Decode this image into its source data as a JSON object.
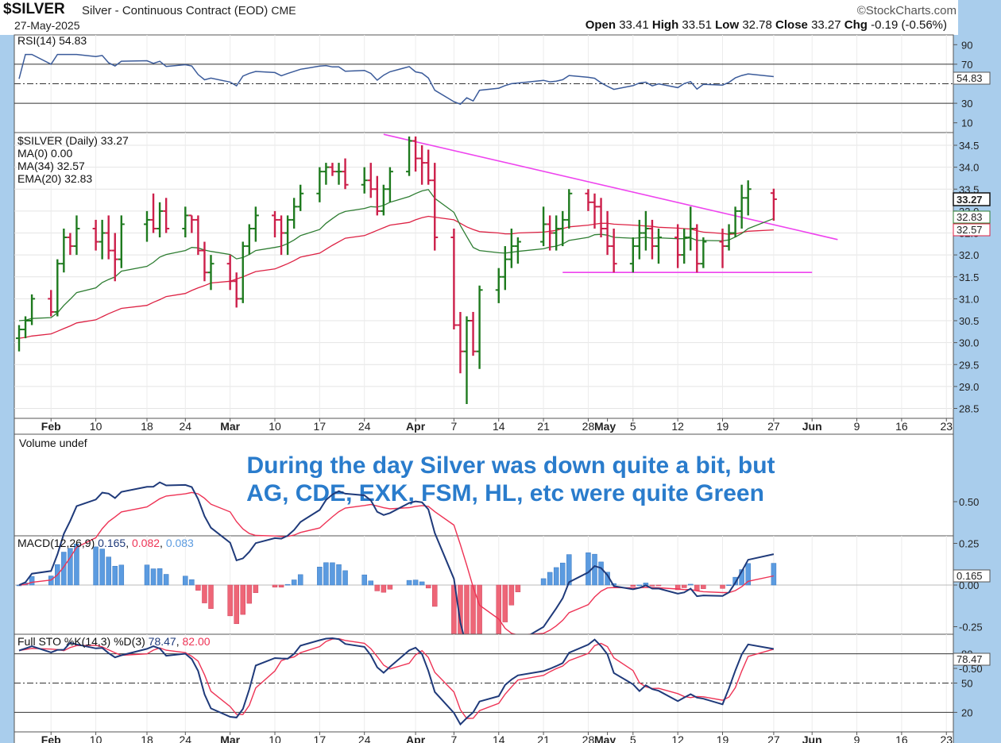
{
  "header": {
    "symbol": "$SILVER",
    "description": "Silver - Continuous Contract (EOD)",
    "exchange": "CME",
    "date": "27-May-2025",
    "brand": "©StockCharts.com",
    "open_label": "Open",
    "open": "33.41",
    "high_label": "High",
    "high": "33.51",
    "low_label": "Low",
    "low": "32.78",
    "close_label": "Close",
    "close": "33.27",
    "chg_label": "Chg",
    "chg": "-0.19 (-0.56%)"
  },
  "rsi_panel": {
    "label": "RSI(14) 54.83",
    "value_tag": "54.83",
    "ticks": [
      "90",
      "70",
      "30",
      "10"
    ]
  },
  "price_panel": {
    "title": "$SILVER (Daily) 33.27",
    "legend": [
      {
        "text": "MA(0) 0.00",
        "color": "#1a237e"
      },
      {
        "text": "MA(34) 32.57",
        "color": "#cc2244"
      },
      {
        "text": "EMA(20) 32.83",
        "color": "#2e7d32"
      }
    ],
    "tags": [
      "33.27",
      "32.83",
      "32.57"
    ],
    "ticks": [
      "34.5",
      "34.0",
      "33.5",
      "33.0",
      "32.5",
      "32.0",
      "31.5",
      "31.0",
      "30.5",
      "30.0",
      "29.5",
      "29.0",
      "28.5"
    ]
  },
  "volume_panel": {
    "label": "Volume undef",
    "annotation_line1": "During the day Silver was down quite a bit, but",
    "annotation_line2": "AG, CDE, EXK, FSM, HL, etc were quite Green"
  },
  "macd_panel": {
    "label_prefix": "MACD(12,26,9)",
    "macd": "0.165",
    "signal": "0.082",
    "hist": "0.083",
    "value_tag": "0.165",
    "ticks": [
      "0.50",
      "0.25",
      "0.00",
      "-0.25",
      "-0.50"
    ]
  },
  "sto_panel": {
    "label_prefix": "Full STO %K(14,3) %D(3)",
    "k": "78.47",
    "d": "82.00",
    "value_tag": "78.47",
    "ticks": [
      "80",
      "50",
      "20"
    ]
  },
  "x_axis": {
    "labels": [
      "Feb",
      "10",
      "18",
      "24",
      "Mar",
      "10",
      "17",
      "24",
      "Apr",
      "7",
      "14",
      "21",
      "28",
      "May",
      "5",
      "12",
      "19",
      "27",
      "Jun",
      "9",
      "16",
      "23"
    ],
    "bold": [
      "Feb",
      "Mar",
      "Apr",
      "May",
      "Jun"
    ]
  },
  "colors": {
    "up": "#1e7a1e",
    "down": "#cc1f4a",
    "trendline": "#ee44ee",
    "ma34": "#dd2244",
    "ema20": "#2e7d32",
    "rsi": "#3b5b9a",
    "macd": "#1f3a7a",
    "signal": "#ee3355",
    "hist_pos": "#5b9be0",
    "hist_neg": "#ee6677"
  },
  "chart_data": {
    "type": "ohlc",
    "title": "$SILVER Silver - Continuous Contract (EOD)",
    "x": [
      "2025-01-29",
      "2025-01-30",
      "2025-01-31",
      "2025-02-03",
      "2025-02-04",
      "2025-02-05",
      "2025-02-06",
      "2025-02-07",
      "2025-02-10",
      "2025-02-11",
      "2025-02-12",
      "2025-02-13",
      "2025-02-14",
      "2025-02-18",
      "2025-02-19",
      "2025-02-20",
      "2025-02-21",
      "2025-02-24",
      "2025-02-25",
      "2025-02-26",
      "2025-02-27",
      "2025-02-28",
      "2025-03-03",
      "2025-03-04",
      "2025-03-05",
      "2025-03-06",
      "2025-03-07",
      "2025-03-10",
      "2025-03-11",
      "2025-03-12",
      "2025-03-13",
      "2025-03-14",
      "2025-03-17",
      "2025-03-18",
      "2025-03-19",
      "2025-03-20",
      "2025-03-21",
      "2025-03-24",
      "2025-03-25",
      "2025-03-26",
      "2025-03-27",
      "2025-03-28",
      "2025-03-31",
      "2025-04-01",
      "2025-04-02",
      "2025-04-03",
      "2025-04-04",
      "2025-04-07",
      "2025-04-08",
      "2025-04-09",
      "2025-04-10",
      "2025-04-11",
      "2025-04-14",
      "2025-04-15",
      "2025-04-16",
      "2025-04-17",
      "2025-04-21",
      "2025-04-22",
      "2025-04-23",
      "2025-04-24",
      "2025-04-25",
      "2025-04-28",
      "2025-04-29",
      "2025-04-30",
      "2025-05-01",
      "2025-05-02",
      "2025-05-05",
      "2025-05-06",
      "2025-05-07",
      "2025-05-08",
      "2025-05-09",
      "2025-05-12",
      "2025-05-13",
      "2025-05-14",
      "2025-05-15",
      "2025-05-16",
      "2025-05-19",
      "2025-05-20",
      "2025-05-21",
      "2025-05-22",
      "2025-05-23",
      "2025-05-27"
    ],
    "ohlc": [
      [
        30.1,
        30.4,
        29.8,
        30.3
      ],
      [
        30.3,
        30.6,
        30.1,
        30.5
      ],
      [
        30.5,
        31.1,
        30.4,
        31.0
      ],
      [
        31.0,
        31.2,
        30.6,
        30.7
      ],
      [
        30.7,
        31.9,
        30.6,
        31.8
      ],
      [
        31.8,
        32.6,
        31.6,
        32.4
      ],
      [
        32.4,
        32.5,
        32.0,
        32.2
      ],
      [
        32.2,
        32.9,
        32.0,
        32.6
      ],
      [
        32.6,
        32.8,
        32.1,
        32.3
      ],
      [
        32.3,
        32.8,
        31.9,
        32.5
      ],
      [
        32.5,
        32.9,
        31.9,
        32.1
      ],
      [
        32.1,
        32.5,
        31.4,
        31.9
      ],
      [
        31.9,
        32.9,
        31.7,
        32.7
      ],
      [
        32.7,
        33.0,
        32.3,
        32.8
      ],
      [
        32.8,
        33.4,
        32.5,
        32.6
      ],
      [
        32.6,
        33.2,
        32.4,
        33.0
      ],
      [
        33.0,
        33.3,
        32.5,
        32.6
      ],
      [
        32.6,
        33.1,
        32.4,
        32.9
      ],
      [
        32.9,
        32.9,
        32.5,
        32.8
      ],
      [
        32.8,
        32.9,
        32.0,
        32.1
      ],
      [
        32.1,
        32.3,
        31.4,
        31.6
      ],
      [
        31.6,
        32.0,
        31.2,
        31.8
      ],
      [
        31.8,
        32.0,
        31.2,
        31.4
      ],
      [
        31.4,
        31.6,
        30.8,
        31.0
      ],
      [
        31.0,
        32.3,
        30.9,
        32.2
      ],
      [
        32.2,
        32.7,
        32.0,
        32.6
      ],
      [
        32.6,
        33.1,
        32.3,
        32.9
      ],
      [
        32.9,
        33.0,
        32.4,
        32.8
      ],
      [
        32.8,
        32.9,
        32.0,
        32.5
      ],
      [
        32.5,
        32.9,
        32.0,
        32.8
      ],
      [
        32.8,
        33.3,
        32.6,
        33.1
      ],
      [
        33.1,
        33.6,
        33.0,
        33.4
      ],
      [
        33.4,
        34.0,
        33.2,
        33.9
      ],
      [
        33.9,
        34.1,
        33.6,
        34.0
      ],
      [
        34.0,
        34.1,
        33.8,
        33.9
      ],
      [
        33.9,
        34.1,
        33.6,
        33.9
      ],
      [
        33.9,
        34.2,
        33.5,
        33.6
      ],
      [
        33.6,
        34.0,
        33.4,
        33.7
      ],
      [
        33.7,
        34.1,
        33.3,
        33.5
      ],
      [
        33.5,
        33.8,
        32.9,
        33.0
      ],
      [
        33.0,
        33.6,
        32.9,
        33.5
      ],
      [
        33.5,
        34.0,
        33.2,
        33.9
      ],
      [
        33.9,
        34.7,
        33.8,
        34.6
      ],
      [
        34.6,
        34.7,
        33.9,
        34.2
      ],
      [
        34.2,
        34.5,
        33.6,
        34.1
      ],
      [
        34.1,
        34.4,
        33.6,
        33.7
      ],
      [
        33.7,
        34.1,
        32.1,
        32.4
      ],
      [
        32.4,
        32.6,
        30.3,
        30.4
      ],
      [
        30.4,
        30.7,
        29.3,
        29.8
      ],
      [
        29.8,
        30.6,
        28.6,
        30.5
      ],
      [
        30.5,
        30.7,
        29.7,
        29.8
      ],
      [
        29.8,
        31.3,
        29.4,
        31.2
      ],
      [
        31.2,
        31.7,
        30.9,
        31.5
      ],
      [
        31.5,
        32.2,
        31.2,
        31.9
      ],
      [
        31.9,
        32.6,
        31.7,
        32.2
      ],
      [
        32.2,
        32.4,
        31.8,
        32.3
      ],
      [
        32.3,
        33.1,
        32.2,
        32.7
      ],
      [
        32.7,
        32.9,
        32.1,
        32.5
      ],
      [
        32.5,
        32.9,
        32.1,
        32.6
      ],
      [
        32.6,
        33.0,
        32.2,
        32.8
      ],
      [
        32.8,
        33.5,
        32.6,
        33.4
      ],
      [
        33.4,
        33.5,
        33.0,
        33.2
      ],
      [
        33.2,
        33.4,
        32.6,
        33.1
      ],
      [
        33.1,
        33.3,
        32.4,
        32.6
      ],
      [
        32.6,
        33.0,
        32.0,
        32.2
      ],
      [
        32.2,
        32.6,
        31.6,
        31.8
      ],
      [
        31.8,
        32.4,
        31.6,
        32.2
      ],
      [
        32.2,
        32.8,
        31.9,
        32.5
      ],
      [
        32.5,
        33.0,
        32.1,
        32.6
      ],
      [
        32.6,
        32.8,
        31.9,
        32.2
      ],
      [
        32.2,
        32.6,
        31.8,
        32.4
      ],
      [
        32.4,
        32.7,
        31.7,
        32.0
      ],
      [
        32.0,
        32.6,
        31.8,
        32.4
      ],
      [
        32.4,
        33.1,
        32.1,
        32.6
      ],
      [
        32.6,
        32.7,
        31.6,
        31.8
      ],
      [
        31.8,
        32.4,
        31.7,
        32.3
      ],
      [
        32.3,
        32.6,
        31.7,
        32.2
      ],
      [
        32.2,
        32.7,
        32.1,
        32.5
      ],
      [
        32.5,
        33.1,
        32.4,
        33.0
      ],
      [
        33.0,
        33.6,
        32.6,
        33.3
      ],
      [
        33.3,
        33.7,
        32.9,
        33.5
      ],
      [
        33.41,
        33.51,
        32.78,
        33.27
      ]
    ],
    "ylim": [
      28.3,
      34.8
    ],
    "annotations": [
      {
        "type": "trendline",
        "from": [
          "2025-03-27",
          34.75
        ],
        "to": [
          "2025-06-06",
          32.35
        ]
      },
      {
        "type": "support",
        "from": [
          "2025-04-24",
          31.6
        ],
        "to": [
          "2025-06-02",
          31.6
        ]
      }
    ],
    "ma34_values": [
      30.1,
      30.12,
      30.15,
      30.2,
      30.26,
      30.32,
      30.38,
      30.45,
      30.52,
      30.59,
      30.66,
      30.72,
      30.78,
      30.85,
      30.92,
      30.98,
      31.05,
      31.12,
      31.19,
      31.25,
      31.3,
      31.36,
      31.4,
      31.45,
      31.5,
      31.56,
      31.62,
      31.68,
      31.74,
      31.8,
      31.87,
      31.95,
      32.04,
      32.13,
      32.22,
      32.3,
      32.38,
      32.44,
      32.5,
      32.56,
      32.62,
      32.68,
      32.74,
      32.8,
      32.85,
      32.88,
      32.86,
      32.8,
      32.72,
      32.64,
      32.58,
      32.53,
      32.5,
      32.48,
      32.48,
      32.5,
      32.52,
      32.54,
      32.56,
      32.6,
      32.64,
      32.68,
      32.7,
      32.72,
      32.72,
      32.7,
      32.68,
      32.67,
      32.66,
      32.65,
      32.63,
      32.61,
      32.6,
      32.59,
      32.55,
      32.52,
      32.49,
      32.47,
      32.48,
      32.51,
      32.54,
      32.57
    ],
    "ema20_values": [
      30.5,
      30.51,
      30.55,
      30.57,
      30.68,
      30.85,
      30.99,
      31.14,
      31.25,
      31.37,
      31.44,
      31.5,
      31.63,
      31.74,
      31.83,
      31.95,
      32.01,
      32.1,
      32.17,
      32.16,
      32.11,
      32.08,
      32.01,
      31.91,
      31.94,
      32.01,
      32.1,
      32.17,
      32.2,
      32.26,
      32.34,
      32.44,
      32.58,
      32.72,
      32.83,
      32.93,
      32.99,
      33.06,
      33.1,
      33.09,
      33.13,
      33.2,
      33.33,
      33.4,
      33.46,
      33.49,
      33.29,
      32.97,
      32.67,
      32.42,
      32.17,
      32.1,
      32.05,
      32.04,
      32.06,
      32.08,
      32.14,
      32.18,
      32.2,
      32.25,
      32.33,
      32.4,
      32.46,
      32.47,
      32.45,
      32.4,
      32.38,
      32.39,
      32.4,
      32.38,
      32.39,
      32.37,
      32.37,
      32.39,
      32.33,
      32.33,
      32.32,
      32.34,
      32.41,
      32.49,
      32.6,
      32.83
    ]
  }
}
